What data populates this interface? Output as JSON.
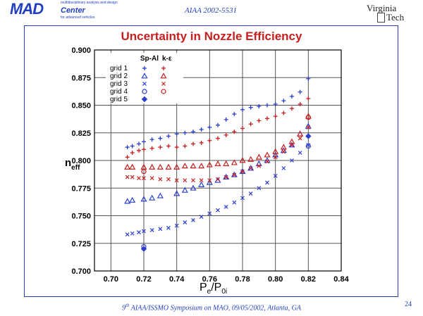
{
  "header": {
    "logo_main": "MAD",
    "logo_center": "Center",
    "logo_tagline_top": "multidisciplinary analysis and design",
    "logo_tagline_bottom": "for advanced vehicles",
    "paper_id": "AIAA 2002-5531",
    "university_line1": "Virginia",
    "university_line2": "Tech"
  },
  "footer": {
    "superscript": "th",
    "text_before": "9",
    "text_after": " AIAA/ISSMO Symposium on MAO, 09/05/2002, Atlanta, GA",
    "page_number": "24"
  },
  "colors": {
    "red": "#c81e1e",
    "blue": "#2a3fcf",
    "title": "#c81e1e",
    "accent": "#1f3fbf"
  },
  "chart_data": {
    "type": "scatter",
    "title": "Uncertainty in Nozzle Efficiency",
    "xlabel_main": "P",
    "xlabel_sub1": "e",
    "xlabel_slash": "/P",
    "xlabel_sub2": "0i",
    "ylabel_main": "n",
    "ylabel_sub": "eff",
    "xlim": [
      0.69,
      0.84
    ],
    "ylim": [
      0.7,
      0.9
    ],
    "xticks": [
      "0.70",
      "0.72",
      "0.74",
      "0.76",
      "0.78",
      "0.80",
      "0.82",
      "0.84"
    ],
    "yticks": [
      "0.700",
      "0.725",
      "0.750",
      "0.775",
      "0.800",
      "0.825",
      "0.850",
      "0.875",
      "0.900"
    ],
    "grid": true,
    "legend": {
      "placement": "top-left",
      "header_sa": "Sp-Al",
      "header_ke": "k-ε",
      "rows": [
        "grid 1",
        "grid 2",
        "grid 3",
        "grid 4",
        "grid 5"
      ]
    },
    "series": [
      {
        "name": "grid 1 Sp-Al",
        "color": "#2a3fcf",
        "marker": "plus",
        "x": [
          0.71,
          0.713,
          0.717,
          0.72,
          0.725,
          0.73,
          0.735,
          0.74,
          0.745,
          0.75,
          0.755,
          0.76,
          0.765,
          0.77,
          0.775,
          0.78,
          0.785,
          0.79,
          0.795,
          0.8,
          0.805,
          0.81,
          0.815,
          0.82
        ],
        "y": [
          0.812,
          0.813,
          0.815,
          0.817,
          0.819,
          0.82,
          0.822,
          0.824,
          0.825,
          0.826,
          0.828,
          0.83,
          0.832,
          0.837,
          0.842,
          0.846,
          0.848,
          0.849,
          0.85,
          0.851,
          0.854,
          0.858,
          0.862,
          0.874
        ]
      },
      {
        "name": "grid 1 k-ε",
        "color": "#c81e1e",
        "marker": "plus",
        "x": [
          0.71,
          0.713,
          0.717,
          0.72,
          0.725,
          0.73,
          0.735,
          0.74,
          0.745,
          0.75,
          0.755,
          0.76,
          0.765,
          0.77,
          0.775,
          0.78,
          0.785,
          0.79,
          0.795,
          0.8,
          0.805,
          0.81,
          0.815,
          0.82
        ],
        "y": [
          0.803,
          0.807,
          0.809,
          0.81,
          0.811,
          0.812,
          0.813,
          0.812,
          0.813,
          0.815,
          0.816,
          0.818,
          0.82,
          0.823,
          0.826,
          0.829,
          0.833,
          0.836,
          0.838,
          0.84,
          0.843,
          0.847,
          0.851,
          0.856
        ]
      },
      {
        "name": "grid 2 Sp-Al",
        "color": "#2a3fcf",
        "marker": "triangle",
        "x": [
          0.71,
          0.713,
          0.72,
          0.725,
          0.73,
          0.74,
          0.745,
          0.75,
          0.755,
          0.76,
          0.765,
          0.77,
          0.775,
          0.78,
          0.785,
          0.79,
          0.795,
          0.8,
          0.805,
          0.81,
          0.815,
          0.82
        ],
        "y": [
          0.763,
          0.764,
          0.765,
          0.766,
          0.768,
          0.77,
          0.773,
          0.775,
          0.778,
          0.78,
          0.782,
          0.785,
          0.787,
          0.79,
          0.793,
          0.797,
          0.8,
          0.805,
          0.809,
          0.814,
          0.824,
          0.831
        ]
      },
      {
        "name": "grid 2 k-ε",
        "color": "#c81e1e",
        "marker": "triangle",
        "x": [
          0.71,
          0.713,
          0.72,
          0.725,
          0.73,
          0.735,
          0.74,
          0.745,
          0.75,
          0.755,
          0.76,
          0.765,
          0.77,
          0.775,
          0.78,
          0.785,
          0.79,
          0.795,
          0.8,
          0.805,
          0.81,
          0.815,
          0.82
        ],
        "y": [
          0.794,
          0.794,
          0.794,
          0.794,
          0.794,
          0.794,
          0.794,
          0.795,
          0.795,
          0.795,
          0.796,
          0.797,
          0.797,
          0.798,
          0.8,
          0.801,
          0.803,
          0.805,
          0.808,
          0.812,
          0.817,
          0.824,
          0.84
        ]
      },
      {
        "name": "grid 3 Sp-Al",
        "color": "#2a3fcf",
        "marker": "x",
        "x": [
          0.71,
          0.713,
          0.717,
          0.72,
          0.725,
          0.73,
          0.735,
          0.74,
          0.745,
          0.75,
          0.755,
          0.76,
          0.765,
          0.77,
          0.775,
          0.78,
          0.785,
          0.79,
          0.795,
          0.8,
          0.805,
          0.81,
          0.815,
          0.82
        ],
        "y": [
          0.733,
          0.734,
          0.735,
          0.736,
          0.737,
          0.738,
          0.739,
          0.741,
          0.744,
          0.746,
          0.749,
          0.752,
          0.755,
          0.758,
          0.762,
          0.766,
          0.77,
          0.775,
          0.78,
          0.786,
          0.793,
          0.8,
          0.807,
          0.814
        ]
      },
      {
        "name": "grid 3 k-ε",
        "color": "#c81e1e",
        "marker": "x",
        "x": [
          0.71,
          0.713,
          0.717,
          0.72,
          0.725,
          0.73,
          0.735,
          0.74,
          0.745,
          0.75,
          0.755,
          0.76,
          0.765,
          0.77,
          0.775,
          0.78,
          0.785,
          0.79,
          0.795,
          0.8,
          0.805,
          0.81,
          0.815,
          0.82
        ],
        "y": [
          0.785,
          0.785,
          0.784,
          0.784,
          0.784,
          0.783,
          0.783,
          0.782,
          0.782,
          0.782,
          0.782,
          0.782,
          0.783,
          0.785,
          0.787,
          0.79,
          0.793,
          0.795,
          0.799,
          0.803,
          0.808,
          0.814,
          0.82,
          0.83
        ]
      },
      {
        "name": "grid 4 Sp-Al",
        "color": "#2a3fcf",
        "marker": "circle",
        "x": [
          0.72,
          0.82
        ],
        "y": [
          0.722,
          0.813
        ]
      },
      {
        "name": "grid 4 k-ε",
        "color": "#c81e1e",
        "marker": "circle",
        "x": [
          0.72,
          0.82
        ],
        "y": [
          0.79,
          0.839
        ]
      },
      {
        "name": "grid 5 Sp-Al",
        "color": "#2a3fcf",
        "marker": "diamond",
        "x": [
          0.72,
          0.82
        ],
        "y": [
          0.72,
          0.822
        ]
      }
    ]
  }
}
